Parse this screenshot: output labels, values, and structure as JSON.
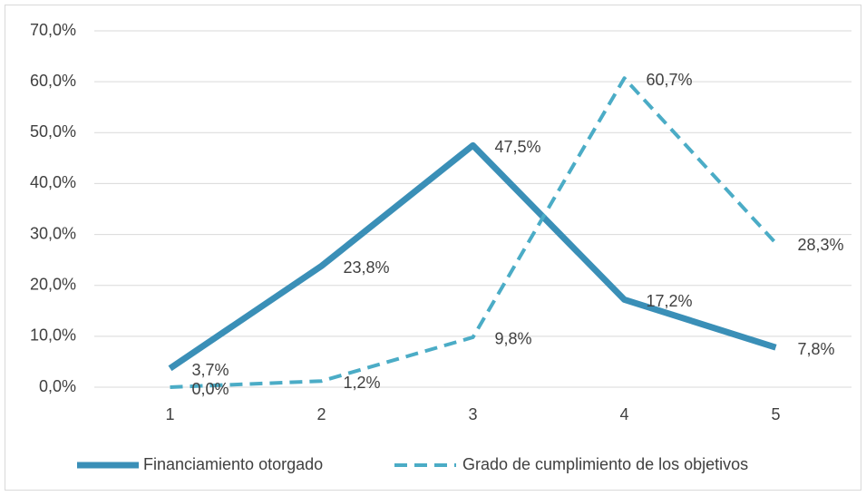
{
  "chart_data": {
    "type": "line",
    "categories": [
      "1",
      "2",
      "3",
      "4",
      "5"
    ],
    "series": [
      {
        "name": "Financiamiento otorgado",
        "color": "#3a8fb7",
        "dash": false,
        "values": [
          3.7,
          23.8,
          47.5,
          17.2,
          7.8
        ],
        "value_labels": [
          "3,7%",
          "23,8%",
          "47,5%",
          "17,2%",
          "7,8%"
        ]
      },
      {
        "name": "Grado de cumplimiento de los objetivos",
        "color": "#4bacc6",
        "dash": true,
        "values": [
          0,
          1.2,
          9.8,
          60.7,
          28.3
        ],
        "value_labels": [
          "0,0%",
          "1,2%",
          "9,8%",
          "60,7%",
          "28,3%"
        ]
      }
    ],
    "ylim": [
      0,
      70
    ],
    "yticks": [
      {
        "value": 0,
        "label": "0,0%"
      },
      {
        "value": 10,
        "label": "10,0%"
      },
      {
        "value": 20,
        "label": "20,0%"
      },
      {
        "value": 30,
        "label": "30,0%"
      },
      {
        "value": 40,
        "label": "40,0%"
      },
      {
        "value": 50,
        "label": "50,0%"
      },
      {
        "value": 60,
        "label": "60,0%"
      },
      {
        "value": 70,
        "label": "70,0%"
      }
    ],
    "grid": true,
    "legend": "bottom"
  }
}
